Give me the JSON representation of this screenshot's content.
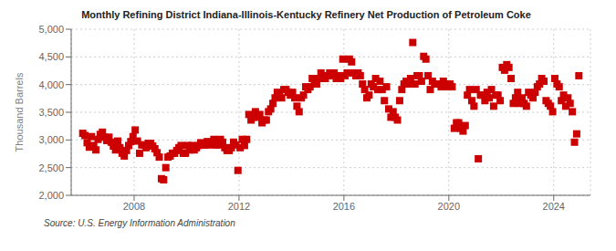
{
  "chart_data": {
    "type": "scatter",
    "title": "Monthly Refining District Indiana-Illinois-Kentucky Refinery Net Production of Petroleum Coke",
    "ylabel": "Thousand Barrels",
    "annotations": [
      "Source: U.S. Energy Information Administration"
    ],
    "color": "#cc0000",
    "marker": "square",
    "grid": true,
    "xlim": [
      2005.6,
      2025.4
    ],
    "xticks": [
      2008,
      2012,
      2016,
      2020,
      2024
    ],
    "ylim": [
      2000,
      5000
    ],
    "yticks": [
      {
        "value": 2000,
        "label": "2,000"
      },
      {
        "value": 2500,
        "label": "2,500"
      },
      {
        "value": 3000,
        "label": "3,000"
      },
      {
        "value": 3500,
        "label": "3,500"
      },
      {
        "value": 4000,
        "label": "4,000"
      },
      {
        "value": 4500,
        "label": "4,500"
      },
      {
        "value": 5000,
        "label": "5,000"
      }
    ],
    "x": [
      2006.0416666666667,
      2006.125,
      2006.2083333333333,
      2006.2916666666667,
      2006.375,
      2006.4583333333333,
      2006.5416666666667,
      2006.625,
      2006.7083333333333,
      2006.7916666666667,
      2006.875,
      2006.9583333333333,
      2007.0416666666667,
      2007.125,
      2007.2083333333333,
      2007.2916666666667,
      2007.375,
      2007.4583333333333,
      2007.5416666666667,
      2007.625,
      2007.7083333333333,
      2007.7916666666667,
      2007.875,
      2007.9583333333333,
      2008.0416666666667,
      2008.125,
      2008.2083333333333,
      2008.2916666666667,
      2008.375,
      2008.4583333333333,
      2008.5416666666667,
      2008.625,
      2008.7083333333333,
      2008.7916666666667,
      2008.875,
      2008.9583333333333,
      2009.0416666666667,
      2009.125,
      2009.2083333333333,
      2009.2916666666667,
      2009.375,
      2009.4583333333333,
      2009.5416666666667,
      2009.625,
      2009.7083333333333,
      2009.7916666666667,
      2009.875,
      2009.9583333333333,
      2010.0416666666667,
      2010.125,
      2010.2083333333333,
      2010.2916666666667,
      2010.375,
      2010.4583333333333,
      2010.5416666666667,
      2010.625,
      2010.7083333333333,
      2010.7916666666667,
      2010.875,
      2010.9583333333333,
      2011.0416666666667,
      2011.125,
      2011.2083333333333,
      2011.2916666666667,
      2011.375,
      2011.4583333333333,
      2011.5416666666667,
      2011.625,
      2011.7083333333333,
      2011.7916666666667,
      2011.875,
      2011.9583333333333,
      2012.0416666666667,
      2012.125,
      2012.2083333333333,
      2012.2916666666667,
      2012.375,
      2012.4583333333333,
      2012.5416666666667,
      2012.625,
      2012.7083333333333,
      2012.7916666666667,
      2012.875,
      2012.9583333333333,
      2013.0416666666667,
      2013.125,
      2013.2083333333333,
      2013.2916666666667,
      2013.375,
      2013.4583333333333,
      2013.5416666666667,
      2013.625,
      2013.7083333333333,
      2013.7916666666667,
      2013.875,
      2013.9583333333333,
      2014.0416666666667,
      2014.125,
      2014.2083333333333,
      2014.2916666666667,
      2014.375,
      2014.4583333333333,
      2014.5416666666667,
      2014.625,
      2014.7083333333333,
      2014.7916666666667,
      2014.875,
      2014.9583333333333,
      2015.0416666666667,
      2015.125,
      2015.2083333333333,
      2015.2916666666667,
      2015.375,
      2015.4583333333333,
      2015.5416666666667,
      2015.625,
      2015.7083333333333,
      2015.7916666666667,
      2015.875,
      2015.9583333333333,
      2016.0416666666667,
      2016.125,
      2016.2083333333333,
      2016.2916666666667,
      2016.375,
      2016.4583333333333,
      2016.5416666666667,
      2016.625,
      2016.7083333333333,
      2016.7916666666667,
      2016.875,
      2016.9583333333333,
      2017.0416666666667,
      2017.125,
      2017.2083333333333,
      2017.2916666666667,
      2017.375,
      2017.4583333333333,
      2017.5416666666667,
      2017.625,
      2017.7083333333333,
      2017.7916666666667,
      2017.875,
      2017.9583333333333,
      2018.0416666666667,
      2018.125,
      2018.2083333333333,
      2018.2916666666667,
      2018.375,
      2018.4583333333333,
      2018.5416666666667,
      2018.625,
      2018.7083333333333,
      2018.7916666666667,
      2018.875,
      2018.9583333333333,
      2019.0416666666667,
      2019.125,
      2019.2083333333333,
      2019.2916666666667,
      2019.375,
      2019.4583333333333,
      2019.5416666666667,
      2019.625,
      2019.7083333333333,
      2019.7916666666667,
      2019.875,
      2019.9583333333333,
      2020.0416666666667,
      2020.125,
      2020.2083333333333,
      2020.2916666666667,
      2020.375,
      2020.4583333333333,
      2020.5416666666667,
      2020.625,
      2020.7083333333333,
      2020.7916666666667,
      2020.875,
      2020.9583333333333,
      2021.0416666666667,
      2021.125,
      2021.2083333333333,
      2021.2916666666667,
      2021.375,
      2021.4583333333333,
      2021.5416666666667,
      2021.625,
      2021.7083333333333,
      2021.7916666666667,
      2021.875,
      2021.9583333333333,
      2022.0416666666667,
      2022.125,
      2022.2083333333333,
      2022.2916666666667,
      2022.375,
      2022.4583333333333,
      2022.5416666666667,
      2022.625,
      2022.7083333333333,
      2022.7916666666667,
      2022.875,
      2022.9583333333333,
      2023.0416666666667,
      2023.125,
      2023.2083333333333,
      2023.2916666666667,
      2023.375,
      2023.4583333333333,
      2023.5416666666667,
      2023.625,
      2023.7083333333333,
      2023.7916666666667,
      2023.875,
      2023.9583333333333,
      2024.0416666666667,
      2024.125,
      2024.2083333333333,
      2024.2916666666667,
      2024.375,
      2024.4583333333333,
      2024.5416666666667,
      2024.625,
      2024.7083333333333,
      2024.7916666666667,
      2024.875,
      2024.9583333333333
    ],
    "values": [
      3120,
      3080,
      2950,
      2870,
      3060,
      2900,
      2820,
      3010,
      3100,
      3140,
      3050,
      2990,
      3050,
      2960,
      2890,
      2820,
      2980,
      2860,
      2760,
      2710,
      2810,
      2900,
      2970,
      3060,
      3180,
      2980,
      2760,
      2910,
      2910,
      2860,
      2940,
      2940,
      2890,
      2840,
      2770,
      2690,
      2300,
      2280,
      2500,
      2690,
      2710,
      2760,
      2760,
      2810,
      2860,
      2900,
      2760,
      2760,
      2900,
      2820,
      2900,
      2820,
      2860,
      2900,
      2950,
      2910,
      2910,
      2970,
      2910,
      2950,
      3010,
      2910,
      2910,
      3010,
      2960,
      2860,
      2810,
      2810,
      2860,
      2960,
      2910,
      2450,
      2860,
      3010,
      2900,
      3010,
      3460,
      3360,
      3410,
      3510,
      3410,
      3460,
      3310,
      3360,
      3360,
      3510,
      3560,
      3660,
      3760,
      3860,
      3810,
      3760,
      3910,
      3910,
      3860,
      3810,
      3860,
      3760,
      3610,
      3510,
      3760,
      3810,
      3960,
      3910,
      3960,
      4110,
      4060,
      4010,
      4110,
      4210,
      4160,
      4110,
      4160,
      4210,
      4160,
      4210,
      4110,
      4160,
      4110,
      4460,
      4160,
      4210,
      4460,
      4410,
      4210,
      4160,
      4210,
      4160,
      4010,
      3910,
      3760,
      3810,
      4010,
      3960,
      4110,
      3910,
      4060,
      3910,
      3710,
      3960,
      3560,
      3410,
      3510,
      3410,
      3360,
      3710,
      3910,
      4010,
      4060,
      4010,
      4110,
      4760,
      4010,
      4160,
      4160,
      4060,
      4510,
      4460,
      4160,
      3910,
      4060,
      4010,
      4010,
      4010,
      3960,
      4060,
      4010,
      3960,
      4010,
      3960,
      3210,
      3310,
      3310,
      3210,
      3160,
      3260,
      3810,
      3910,
      3710,
      3610,
      3910,
      2660,
      3810,
      3810,
      3710,
      3860,
      3760,
      3910,
      3610,
      3810,
      3810,
      3710,
      4310,
      4260,
      4360,
      4310,
      4110,
      3660,
      3760,
      3860,
      3660,
      3760,
      3660,
      3610,
      3860,
      3810,
      3760,
      3860,
      3960,
      4010,
      4110,
      4060,
      3710,
      3660,
      3610,
      3510,
      4110,
      4010,
      3960,
      3710,
      3810,
      3610,
      3760,
      3660,
      3510,
      2960,
      3110,
      4160
    ]
  }
}
